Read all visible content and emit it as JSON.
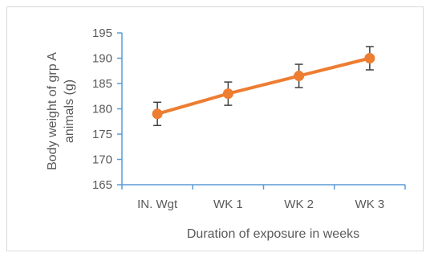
{
  "chart_data": {
    "type": "line",
    "title": "",
    "categories": [
      "IN. Wgt",
      "WK 1",
      "WK 2",
      "WK 3"
    ],
    "series": [
      {
        "values": [
          179,
          183,
          186.5,
          190
        ],
        "error": [
          2.3,
          2.3,
          2.3,
          2.3
        ],
        "color": "#ED7D31"
      }
    ],
    "ylabel_lines": [
      "Body weight of  grp A",
      "animals (g)"
    ],
    "xlabel": "Duration of exposure in weeks",
    "ylim": [
      165,
      195
    ],
    "yticks": [
      165,
      170,
      175,
      180,
      185,
      190,
      195
    ],
    "grid": false,
    "axis_color": "#5B9BD5"
  }
}
